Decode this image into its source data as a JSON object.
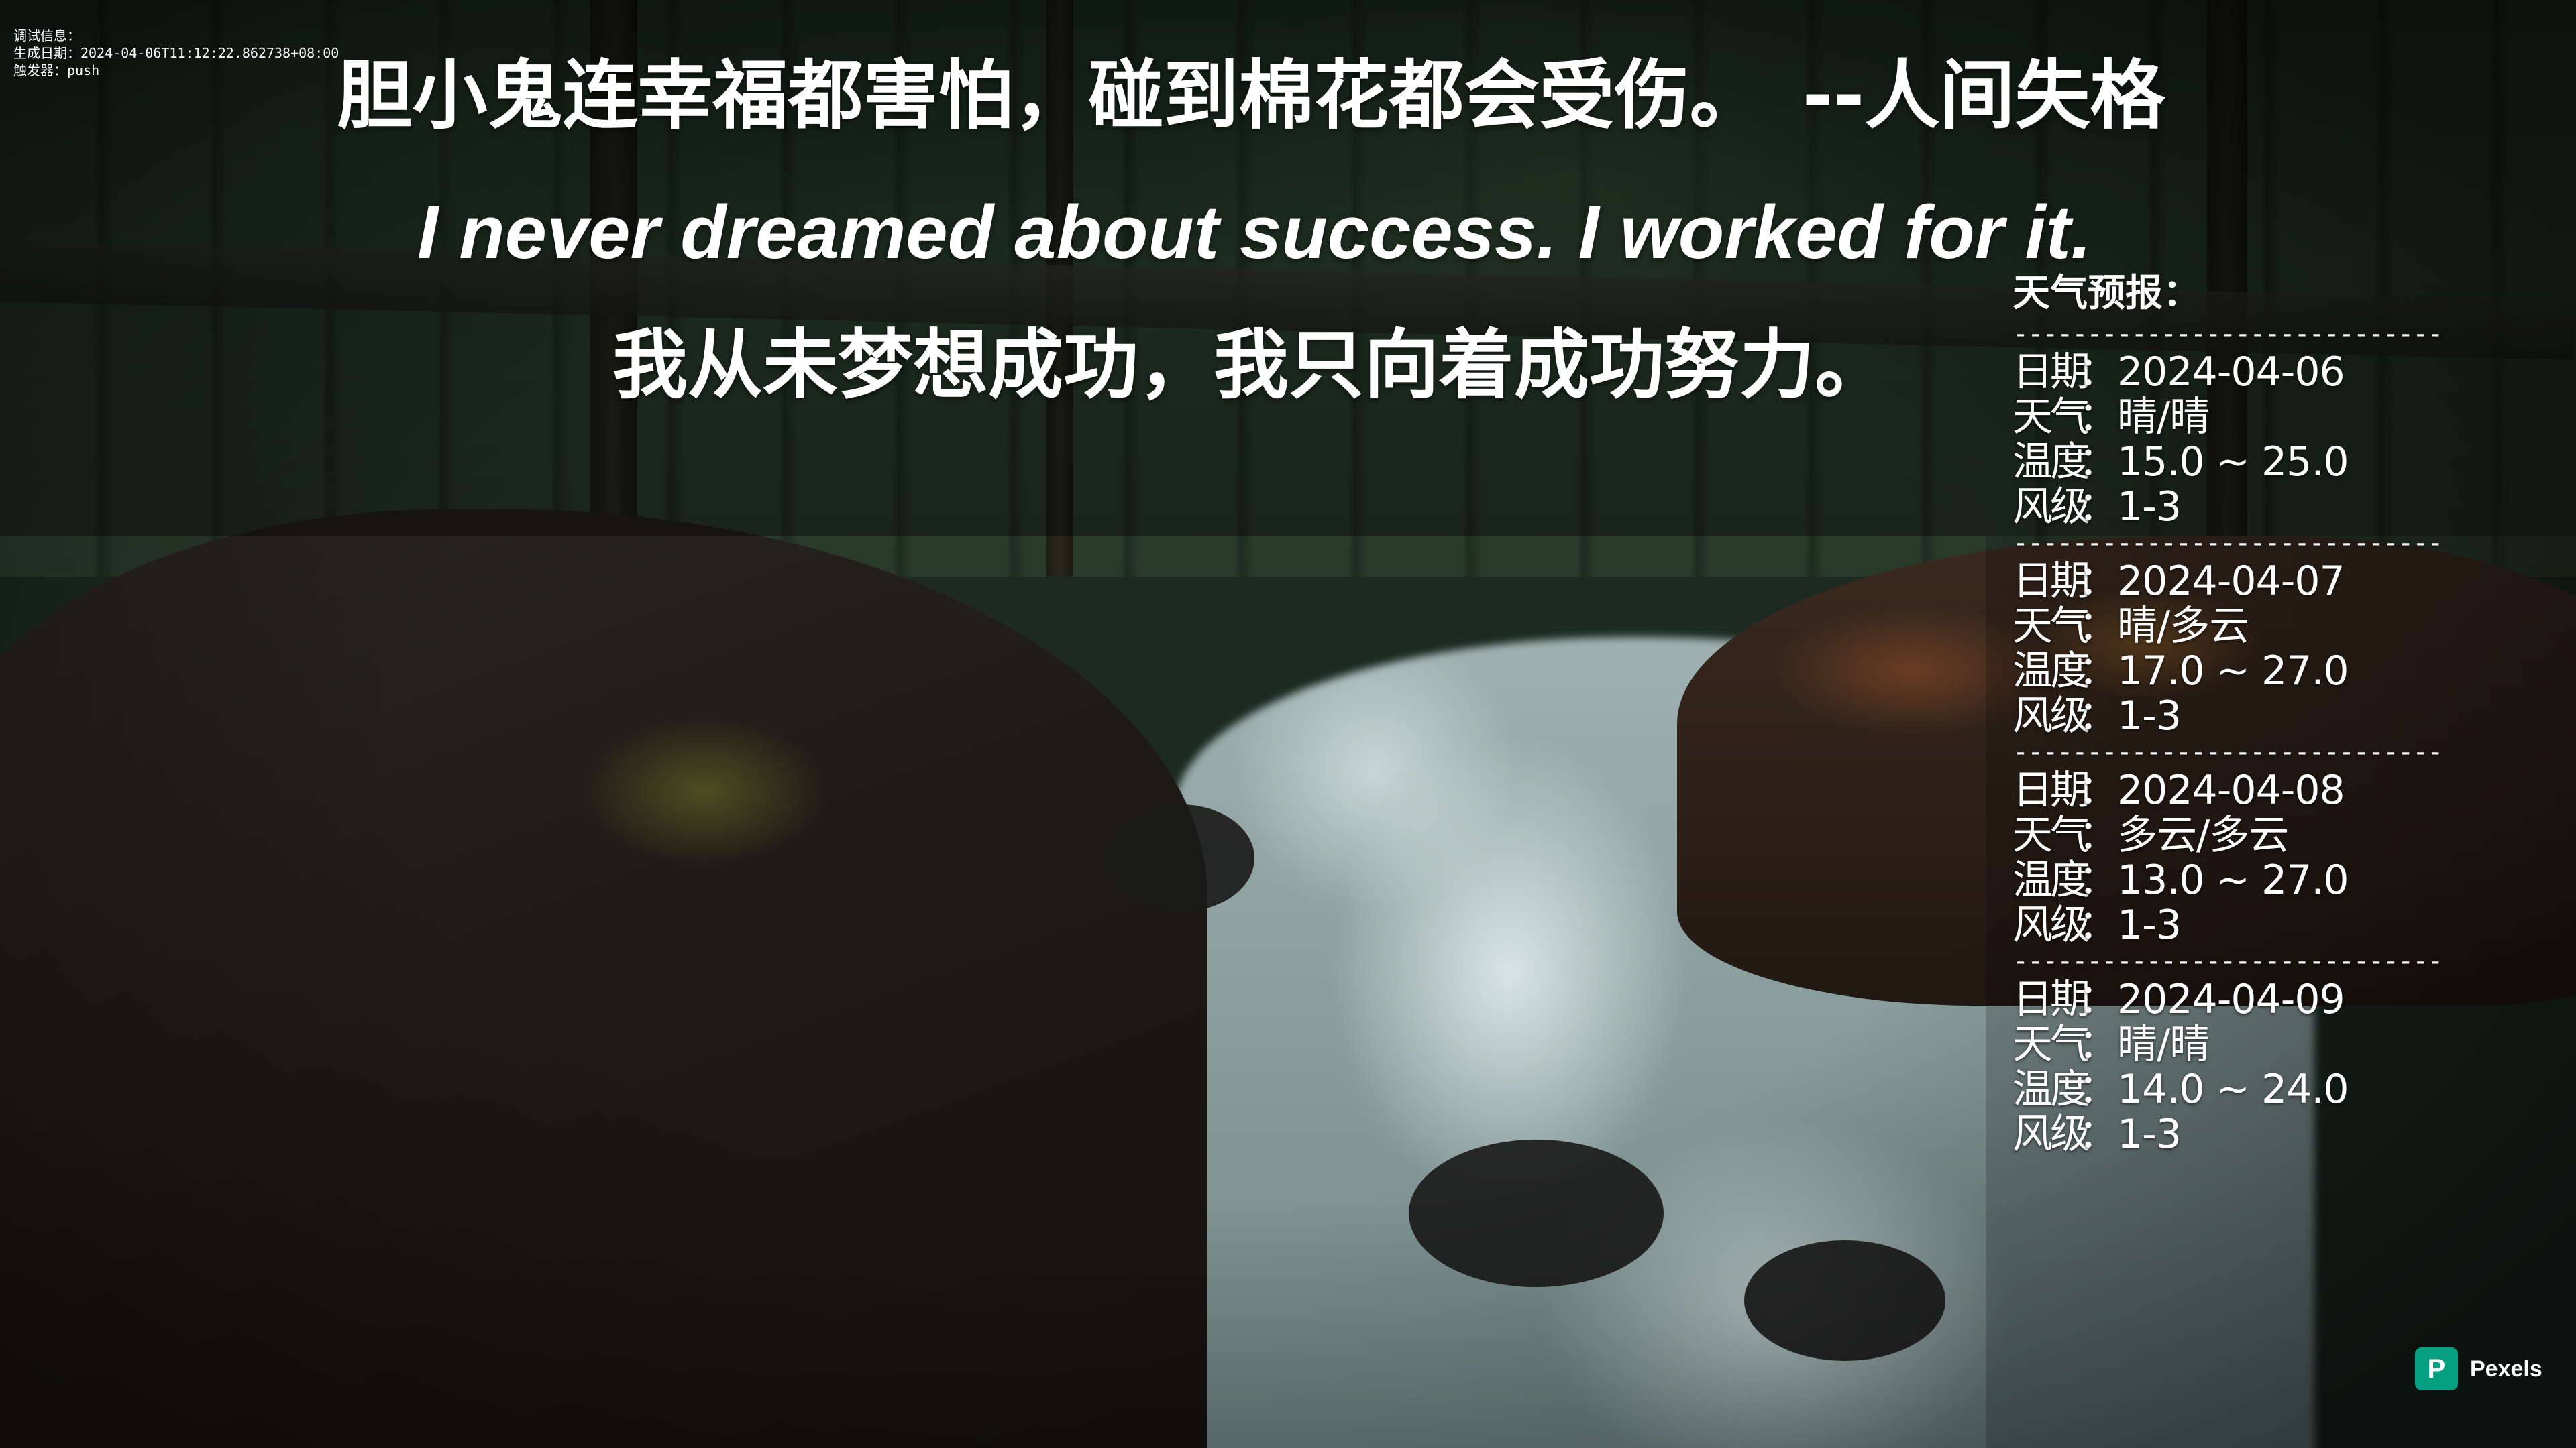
{
  "debug": {
    "title": "调试信息：",
    "generated_label": "生成日期：",
    "generated_value": "2024-04-06T11:12:22.862738+08:00",
    "trigger_label": "触发器：",
    "trigger_value": "push"
  },
  "quotes": {
    "chinese": "胆小鬼连幸福都害怕，碰到棉花都会受伤。　--人间失格",
    "english": "I never dreamed about success. I worked for it.",
    "chinese_translation": "我从未梦想成功，我只向着成功努力。"
  },
  "weather": {
    "title": "天气预报：",
    "separator": "--------------------------------",
    "labels": {
      "date": "日期",
      "weather": "天气",
      "temperature": "温度",
      "wind": "风级",
      "colon": "："
    },
    "days": [
      {
        "date": "2024-04-06",
        "weather": "晴/晴",
        "temperature": "15.0 ~ 25.0",
        "wind": "1-3"
      },
      {
        "date": "2024-04-07",
        "weather": "晴/多云",
        "temperature": "17.0 ~ 27.0",
        "wind": "1-3"
      },
      {
        "date": "2024-04-08",
        "weather": "多云/多云",
        "temperature": "13.0 ~ 27.0",
        "wind": "1-3"
      },
      {
        "date": "2024-04-09",
        "weather": "晴/晴",
        "temperature": "14.0 ~ 24.0",
        "wind": "1-3"
      }
    ]
  },
  "watermark": {
    "logo_letter": "P",
    "brand": "Pexels",
    "brand_color": "#05a081"
  }
}
